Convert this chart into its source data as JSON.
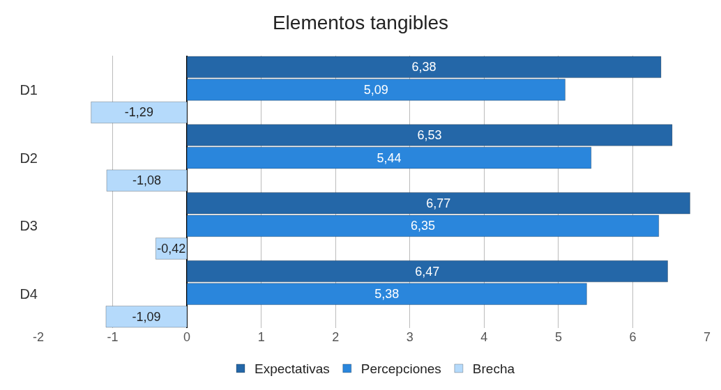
{
  "chart_data": {
    "type": "bar",
    "title": "Elementos tangibles",
    "orientation": "horizontal",
    "categories": [
      "D1",
      "D2",
      "D3",
      "D4"
    ],
    "series": [
      {
        "name": "Expectativas",
        "color": "#2467a8",
        "values": [
          6.38,
          6.53,
          6.77,
          6.47
        ],
        "value_labels": [
          "6,38",
          "6,53",
          "6,77",
          "6,47"
        ]
      },
      {
        "name": "Percepciones",
        "color": "#2a86dc",
        "values": [
          5.09,
          5.44,
          6.35,
          5.38
        ],
        "value_labels": [
          "5,09",
          "5,44",
          "6,35",
          "5,38"
        ]
      },
      {
        "name": "Brecha",
        "color": "#b5dafb",
        "values": [
          -1.29,
          -1.08,
          -0.42,
          -1.09
        ],
        "value_labels": [
          "-1,29",
          "-1,08",
          "-0,42",
          "-1,09"
        ]
      }
    ],
    "xlim": [
      -2,
      7
    ],
    "xticks": [
      -2,
      -1,
      0,
      1,
      2,
      3,
      4,
      5,
      6,
      7
    ],
    "grid": "x",
    "legend": "bottom"
  }
}
